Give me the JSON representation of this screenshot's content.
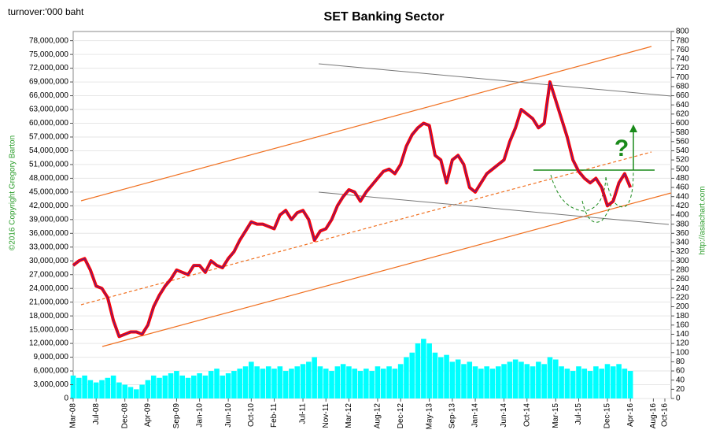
{
  "chart_data": {
    "type": "line",
    "title": "SET Banking Sector",
    "y_label": "turnover:'000 baht",
    "copyright": "©2016 Copyright Gregory Barton",
    "website": "http://asiachart.com",
    "annotation": "?",
    "x": [
      "Mar-08",
      "Apr-08",
      "May-08",
      "Jun-08",
      "Jul-08",
      "Aug-08",
      "Sep-08",
      "Oct-08",
      "Nov-08",
      "Dec-08",
      "Jan-09",
      "Feb-09",
      "Mar-09",
      "Apr-09",
      "May-09",
      "Jun-09",
      "Jul-09",
      "Aug-09",
      "Sep-09",
      "Oct-09",
      "Nov-09",
      "Dec-09",
      "Jan-10",
      "Feb-10",
      "Mar-10",
      "Apr-10",
      "May-10",
      "Jun-10",
      "Jul-10",
      "Aug-10",
      "Sep-10",
      "Oct-10",
      "Nov-10",
      "Dec-10",
      "Jan-11",
      "Feb-11",
      "Mar-11",
      "Apr-11",
      "May-11",
      "Jun-11",
      "Jul-11",
      "Aug-11",
      "Sep-11",
      "Oct-11",
      "Nov-11",
      "Dec-11",
      "Jan-12",
      "Feb-12",
      "Mar-12",
      "Apr-12",
      "May-12",
      "Jun-12",
      "Jul-12",
      "Aug-12",
      "Sep-12",
      "Oct-12",
      "Nov-12",
      "Dec-12",
      "Jan-13",
      "Feb-13",
      "Mar-13",
      "Apr-13",
      "May-13",
      "Jun-13",
      "Jul-13",
      "Aug-13",
      "Sep-13",
      "Oct-13",
      "Nov-13",
      "Dec-13",
      "Jan-14",
      "Feb-14",
      "Mar-14",
      "Apr-14",
      "May-14",
      "Jun-14",
      "Jul-14",
      "Aug-14",
      "Sep-14",
      "Oct-14",
      "Nov-14",
      "Dec-14",
      "Jan-15",
      "Feb-15",
      "Mar-15",
      "Apr-15",
      "May-15",
      "Jun-15",
      "Jul-15",
      "Aug-15",
      "Sep-15",
      "Oct-15",
      "Nov-15",
      "Dec-15",
      "Jan-16",
      "Feb-16",
      "Mar-16",
      "Apr-16"
    ],
    "xlim": [
      "Mar-08",
      "Oct-16"
    ],
    "xticks": [
      "Mar-08",
      "Jul-08",
      "Dec-08",
      "Apr-09",
      "Sep-09",
      "Jan-10",
      "Jun-10",
      "Oct-10",
      "Feb-11",
      "Jul-11",
      "Nov-11",
      "Mar-12",
      "Aug-12",
      "Dec-12",
      "May-13",
      "Sep-13",
      "Jan-14",
      "Jun-14",
      "Oct-14",
      "Mar-15",
      "Jul-15",
      "Dec-15",
      "Apr-16",
      "Aug-16",
      "Oct-16"
    ],
    "series": [
      {
        "name": "SET Banking",
        "color": "#ff0000",
        "axis": "y2",
        "values": [
          290,
          300,
          305,
          280,
          245,
          240,
          220,
          170,
          135,
          140,
          145,
          145,
          140,
          160,
          200,
          225,
          245,
          260,
          280,
          275,
          270,
          290,
          290,
          275,
          300,
          290,
          285,
          305,
          320,
          345,
          365,
          385,
          380,
          380,
          375,
          370,
          400,
          410,
          390,
          405,
          410,
          390,
          345,
          365,
          370,
          390,
          420,
          440,
          455,
          450,
          430,
          450,
          465,
          480,
          495,
          500,
          490,
          510,
          550,
          575,
          590,
          600,
          595,
          530,
          520,
          470,
          520,
          530,
          510,
          460,
          450,
          470,
          490,
          500,
          510,
          520,
          560,
          590,
          630,
          620,
          610,
          590,
          600,
          690,
          650,
          610,
          570,
          520,
          495,
          480,
          470,
          480,
          460,
          420,
          430,
          470,
          490,
          460
        ]
      },
      {
        "name": "turnover",
        "color": "#00ffff",
        "values": [
          5000000,
          4500000,
          5000000,
          4000000,
          3500000,
          4000000,
          4500000,
          5000000,
          3500000,
          3000000,
          2500000,
          2000000,
          3000000,
          4000000,
          5000000,
          4500000,
          5000000,
          5500000,
          6000000,
          5000000,
          4500000,
          5000000,
          5500000,
          5000000,
          6000000,
          6500000,
          5000000,
          5500000,
          6000000,
          6500000,
          7000000,
          8000000,
          7000000,
          6500000,
          7000000,
          6500000,
          7000000,
          6000000,
          6500000,
          7000000,
          7500000,
          8000000,
          9000000,
          7000000,
          6500000,
          6000000,
          7000000,
          7500000,
          7000000,
          6500000,
          6000000,
          6500000,
          6000000,
          7000000,
          6500000,
          7000000,
          6500000,
          7500000,
          9000000,
          10000000,
          12000000,
          13000000,
          12000000,
          10000000,
          9000000,
          9500000,
          8000000,
          8500000,
          7500000,
          8000000,
          7000000,
          6500000,
          7000000,
          6500000,
          7000000,
          7500000,
          8000000,
          8500000,
          8000000,
          7500000,
          7000000,
          8000000,
          7500000,
          9000000,
          8500000,
          7000000,
          6500000,
          6000000,
          7000000,
          6500000,
          6000000,
          7000000,
          6500000,
          7500000,
          7000000,
          7500000,
          6500000,
          6000000
        ]
      }
    ],
    "ylim": [
      0,
      80000000
    ],
    "yticks": [
      0,
      {
        "value": 3000000,
        "label": "3,000,000"
      },
      {
        "value": 6000000,
        "label": "6,000,000"
      },
      {
        "value": 9000000,
        "label": "9,000,000"
      },
      {
        "value": 12000000,
        "label": "12,000,000"
      },
      {
        "value": 15000000,
        "label": "15,000,000"
      },
      {
        "value": 18000000,
        "label": "18,000,000"
      },
      {
        "value": 21000000,
        "label": "21,000,000"
      },
      {
        "value": 24000000,
        "label": "24,000,000"
      },
      {
        "value": 27000000,
        "label": "27,000,000"
      },
      {
        "value": 30000000,
        "label": "30,000,000"
      },
      {
        "value": 33000000,
        "label": "33,000,000"
      },
      {
        "value": 36000000,
        "label": "36,000,000"
      },
      {
        "value": 39000000,
        "label": "39,000,000"
      },
      {
        "value": 42000000,
        "label": "42,000,000"
      },
      {
        "value": 45000000,
        "label": "45,000,000"
      },
      {
        "value": 48000000,
        "label": "48,000,000"
      },
      {
        "value": 51000000,
        "label": "51,000,000"
      },
      {
        "value": 54000000,
        "label": "54,000,000"
      },
      {
        "value": 57000000,
        "label": "57,000,000"
      },
      {
        "value": 60000000,
        "label": "60,000,000"
      },
      {
        "value": 63000000,
        "label": "63,000,000"
      },
      {
        "value": 66000000,
        "label": "66,000,000"
      },
      {
        "value": 69000000,
        "label": "69,000,000"
      },
      {
        "value": 72000000,
        "label": "72,000,000"
      },
      {
        "value": 75000000,
        "label": "75,000,000"
      },
      {
        "value": 78000000,
        "label": "78,000,000"
      }
    ],
    "y2lim": [
      0,
      800
    ],
    "y2ticks": [
      0,
      20,
      40,
      60,
      80,
      100,
      120,
      140,
      160,
      180,
      200,
      220,
      240,
      260,
      280,
      300,
      320,
      340,
      360,
      380,
      400,
      420,
      440,
      460,
      480,
      500,
      520,
      540,
      560,
      580,
      600,
      620,
      640,
      660,
      680,
      700,
      720,
      740,
      760,
      780,
      800
    ],
    "grid": true
  }
}
